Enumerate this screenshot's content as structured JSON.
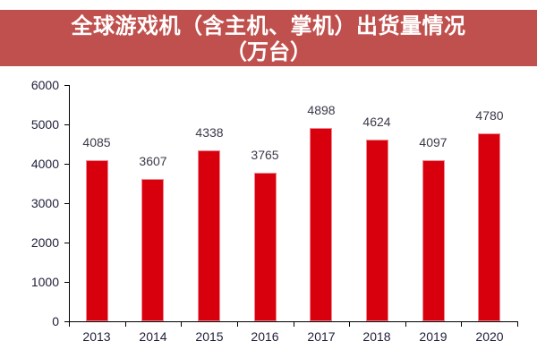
{
  "title": {
    "line1": "全球游戏机（含主机、掌机）出货量情况",
    "line2": "（万台）"
  },
  "colors": {
    "banner": "#C0504D",
    "bar": "#D9000D",
    "axis": "#000000",
    "text": "#1F1F3A"
  },
  "chart_data": {
    "type": "bar",
    "title": "全球游戏机（含主机、掌机）出货量情况（万台）",
    "xlabel": "",
    "ylabel": "",
    "categories": [
      "2013",
      "2014",
      "2015",
      "2016",
      "2017",
      "2018",
      "2019",
      "2020"
    ],
    "values": [
      4085,
      3607,
      4338,
      3765,
      4898,
      4624,
      4097,
      4780
    ],
    "ylim": [
      0,
      6000
    ],
    "yticks": [
      "0",
      "1000",
      "2000",
      "3000",
      "4000",
      "5000",
      "6000"
    ],
    "grid": false,
    "legend": null,
    "data_labels": true
  }
}
